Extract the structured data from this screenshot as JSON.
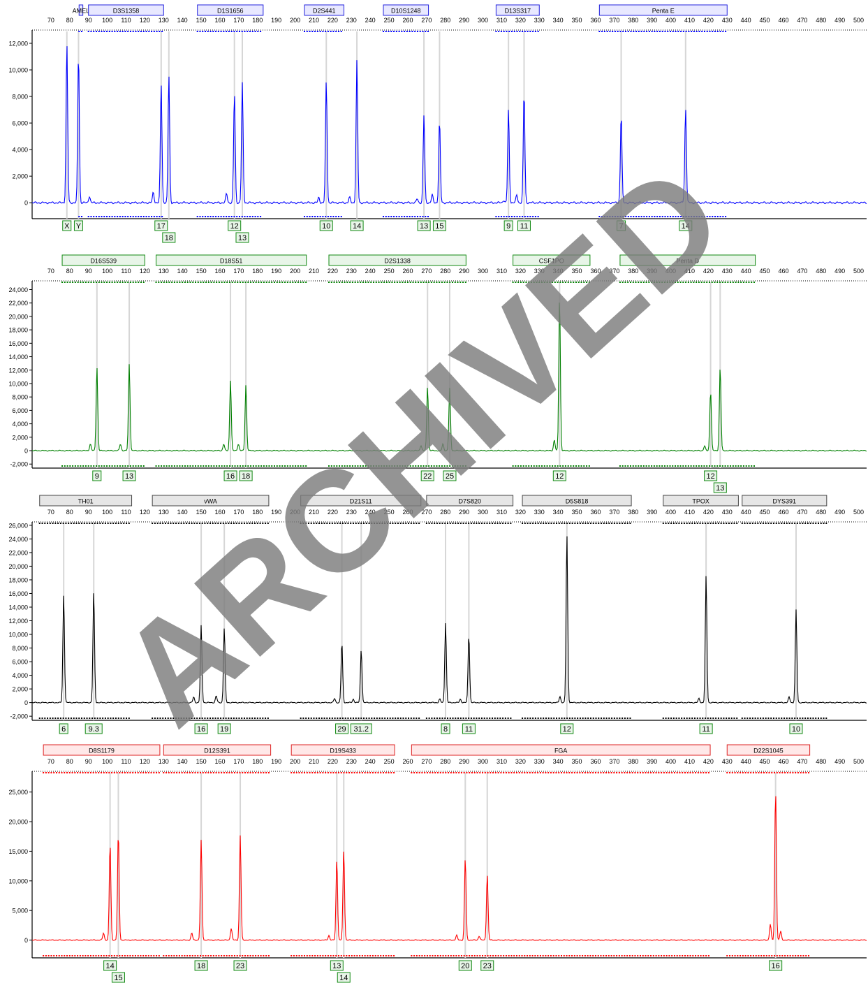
{
  "watermark": "ARCHIVED",
  "x_ticks": [
    70,
    80,
    90,
    100,
    110,
    120,
    130,
    140,
    150,
    160,
    170,
    180,
    190,
    200,
    210,
    220,
    230,
    240,
    250,
    260,
    270,
    280,
    290,
    300,
    310,
    320,
    330,
    340,
    350,
    360,
    370,
    380,
    390,
    400,
    410,
    420,
    430,
    440,
    450,
    460,
    470,
    480,
    490,
    500
  ],
  "chart_data": [
    {
      "type": "line",
      "color": "#0000ff",
      "xlim": [
        60,
        505
      ],
      "ylim": [
        -1200,
        13000
      ],
      "y_ticks": [
        0,
        2000,
        4000,
        6000,
        8000,
        10000,
        12000
      ],
      "y_tick_labels": [
        "0",
        "2,000",
        "4,000",
        "6,000",
        "8,000",
        "10,000",
        "12,000"
      ],
      "loci": [
        {
          "name": "AMEL",
          "start": 85,
          "end": 87
        },
        {
          "name": "D3S1358",
          "start": 90,
          "end": 130
        },
        {
          "name": "D1S1656",
          "start": 148,
          "end": 183
        },
        {
          "name": "D2S441",
          "start": 205,
          "end": 226
        },
        {
          "name": "D10S1248",
          "start": 247,
          "end": 271
        },
        {
          "name": "D13S317",
          "start": 307,
          "end": 330
        },
        {
          "name": "Penta E",
          "start": 362,
          "end": 430
        }
      ],
      "peaks": [
        {
          "x": 78.5,
          "h": 12000
        },
        {
          "x": 84.7,
          "h": 11300
        },
        {
          "x": 90.5,
          "h": 500
        },
        {
          "x": 124.5,
          "h": 800
        },
        {
          "x": 128.7,
          "h": 9000
        },
        {
          "x": 132.8,
          "h": 9600
        },
        {
          "x": 163.5,
          "h": 700
        },
        {
          "x": 167.7,
          "h": 8300
        },
        {
          "x": 171.9,
          "h": 9000
        },
        {
          "x": 212.6,
          "h": 400
        },
        {
          "x": 216.6,
          "h": 9200
        },
        {
          "x": 229,
          "h": 400
        },
        {
          "x": 232.9,
          "h": 10700
        },
        {
          "x": 265,
          "h": 300
        },
        {
          "x": 268.6,
          "h": 6600
        },
        {
          "x": 273,
          "h": 600
        },
        {
          "x": 276.9,
          "h": 6200
        },
        {
          "x": 311,
          "h": 200
        },
        {
          "x": 313.6,
          "h": 7000
        },
        {
          "x": 318,
          "h": 600
        },
        {
          "x": 321.9,
          "h": 8400
        },
        {
          "x": 373.6,
          "h": 6700
        },
        {
          "x": 407,
          "h": 200
        },
        {
          "x": 407.9,
          "h": 7100
        }
      ],
      "alleles": [
        {
          "x": 78.5,
          "labels": [
            "X"
          ]
        },
        {
          "x": 84.7,
          "labels": [
            "Y"
          ]
        },
        {
          "x": 128.7,
          "labels": [
            "17"
          ]
        },
        {
          "x": 132.8,
          "labels": [
            "",
            "18"
          ]
        },
        {
          "x": 167.7,
          "labels": [
            "12"
          ]
        },
        {
          "x": 171.9,
          "labels": [
            "",
            "13"
          ]
        },
        {
          "x": 216.6,
          "labels": [
            "10"
          ]
        },
        {
          "x": 232.9,
          "labels": [
            "14"
          ]
        },
        {
          "x": 268.6,
          "labels": [
            "13"
          ]
        },
        {
          "x": 276.9,
          "labels": [
            "15"
          ]
        },
        {
          "x": 313.6,
          "labels": [
            "9"
          ]
        },
        {
          "x": 321.9,
          "labels": [
            "11"
          ]
        },
        {
          "x": 373.6,
          "labels": [
            "7"
          ]
        },
        {
          "x": 407.9,
          "labels": [
            "14"
          ]
        }
      ]
    },
    {
      "type": "line",
      "color": "#008000",
      "xlim": [
        60,
        505
      ],
      "ylim": [
        -2600,
        25300
      ],
      "y_ticks": [
        -2000,
        0,
        2000,
        4000,
        6000,
        8000,
        10000,
        12000,
        14000,
        16000,
        18000,
        20000,
        22000,
        24000
      ],
      "y_tick_labels": [
        "-2,000",
        "0",
        "2,000",
        "4,000",
        "6,000",
        "8,000",
        "10,000",
        "12,000",
        "14,000",
        "16,000",
        "18,000",
        "20,000",
        "22,000",
        "24,000"
      ],
      "loci": [
        {
          "name": "D16S539",
          "start": 76,
          "end": 120
        },
        {
          "name": "D18S51",
          "start": 126,
          "end": 206
        },
        {
          "name": "D2S1338",
          "start": 218,
          "end": 291
        },
        {
          "name": "CSF1PO",
          "start": 316,
          "end": 357
        },
        {
          "name": "Penta D",
          "start": 373,
          "end": 445
        }
      ],
      "peaks": [
        {
          "x": 91,
          "h": 1000
        },
        {
          "x": 94.5,
          "h": 12500
        },
        {
          "x": 107,
          "h": 1000
        },
        {
          "x": 111.7,
          "h": 12900
        },
        {
          "x": 162,
          "h": 1000
        },
        {
          "x": 165.6,
          "h": 10500
        },
        {
          "x": 169.8,
          "h": 1000
        },
        {
          "x": 173.8,
          "h": 9800
        },
        {
          "x": 267,
          "h": 800
        },
        {
          "x": 270.5,
          "h": 9600
        },
        {
          "x": 278.7,
          "h": 1000
        },
        {
          "x": 282.3,
          "h": 9300
        },
        {
          "x": 338,
          "h": 1600
        },
        {
          "x": 340.8,
          "h": 23000
        },
        {
          "x": 418,
          "h": 700
        },
        {
          "x": 421.2,
          "h": 9000
        },
        {
          "x": 426.3,
          "h": 12500
        }
      ],
      "alleles": [
        {
          "x": 94.5,
          "labels": [
            "9"
          ]
        },
        {
          "x": 111.7,
          "labels": [
            "13"
          ]
        },
        {
          "x": 165.6,
          "labels": [
            "16"
          ]
        },
        {
          "x": 173.8,
          "labels": [
            "18"
          ]
        },
        {
          "x": 270.5,
          "labels": [
            "22"
          ]
        },
        {
          "x": 282.3,
          "labels": [
            "25"
          ]
        },
        {
          "x": 340.8,
          "labels": [
            "12"
          ]
        },
        {
          "x": 421.2,
          "labels": [
            "12"
          ]
        },
        {
          "x": 426.3,
          "labels": [
            "",
            "13"
          ]
        }
      ]
    },
    {
      "type": "line",
      "color": "#000000",
      "xlim": [
        60,
        505
      ],
      "ylim": [
        -2600,
        26500
      ],
      "y_ticks": [
        -2000,
        0,
        2000,
        4000,
        6000,
        8000,
        10000,
        12000,
        14000,
        16000,
        18000,
        20000,
        22000,
        24000,
        26000
      ],
      "y_tick_labels": [
        "-2,000",
        "0",
        "2,000",
        "4,000",
        "6,000",
        "8,000",
        "10,000",
        "12,000",
        "14,000",
        "16,000",
        "18,000",
        "20,000",
        "22,000",
        "24,000",
        "26,000"
      ],
      "loci": [
        {
          "name": "TH01",
          "start": 64,
          "end": 113
        },
        {
          "name": "vWA",
          "start": 124,
          "end": 186
        },
        {
          "name": "D21S11",
          "start": 203,
          "end": 267
        },
        {
          "name": "D7S820",
          "start": 270,
          "end": 316
        },
        {
          "name": "D5S818",
          "start": 321,
          "end": 379
        },
        {
          "name": "TPOX",
          "start": 396,
          "end": 436
        },
        {
          "name": "DYS391",
          "start": 438,
          "end": 483
        }
      ],
      "peaks": [
        {
          "x": 76.8,
          "h": 15900
        },
        {
          "x": 92.8,
          "h": 16300
        },
        {
          "x": 146,
          "h": 800
        },
        {
          "x": 150,
          "h": 11300
        },
        {
          "x": 158,
          "h": 1000
        },
        {
          "x": 162.3,
          "h": 11000
        },
        {
          "x": 221,
          "h": 600
        },
        {
          "x": 224.9,
          "h": 8900
        },
        {
          "x": 231,
          "h": 500
        },
        {
          "x": 235.2,
          "h": 7800
        },
        {
          "x": 277,
          "h": 500
        },
        {
          "x": 280.1,
          "h": 11700
        },
        {
          "x": 288,
          "h": 500
        },
        {
          "x": 292.5,
          "h": 10000
        },
        {
          "x": 341,
          "h": 900
        },
        {
          "x": 344.7,
          "h": 24700
        },
        {
          "x": 415,
          "h": 600
        },
        {
          "x": 418.8,
          "h": 18600
        },
        {
          "x": 463,
          "h": 800
        },
        {
          "x": 466.7,
          "h": 13600
        }
      ],
      "alleles": [
        {
          "x": 76.8,
          "labels": [
            "6"
          ]
        },
        {
          "x": 92.8,
          "labels": [
            "9.3"
          ]
        },
        {
          "x": 150,
          "labels": [
            "16"
          ]
        },
        {
          "x": 162.3,
          "labels": [
            "19"
          ]
        },
        {
          "x": 224.9,
          "labels": [
            "29"
          ]
        },
        {
          "x": 235.2,
          "labels": [
            "31.2"
          ]
        },
        {
          "x": 280.1,
          "labels": [
            "8"
          ]
        },
        {
          "x": 292.5,
          "labels": [
            "11"
          ]
        },
        {
          "x": 344.7,
          "labels": [
            "12"
          ]
        },
        {
          "x": 418.8,
          "labels": [
            "11"
          ]
        },
        {
          "x": 466.7,
          "labels": [
            "10"
          ]
        }
      ]
    },
    {
      "type": "line",
      "color": "#ff0000",
      "xlim": [
        60,
        505
      ],
      "ylim": [
        -3000,
        28500
      ],
      "y_ticks": [
        0,
        5000,
        10000,
        15000,
        20000,
        25000
      ],
      "y_tick_labels": [
        "0",
        "5,000",
        "10,000",
        "15,000",
        "20,000",
        "25,000"
      ],
      "loci": [
        {
          "name": "D8S1179",
          "start": 66,
          "end": 128
        },
        {
          "name": "D12S391",
          "start": 130,
          "end": 187
        },
        {
          "name": "D19S433",
          "start": 198,
          "end": 253
        },
        {
          "name": "FGA",
          "start": 262,
          "end": 421
        },
        {
          "name": "D22S1045",
          "start": 430,
          "end": 474
        }
      ],
      "peaks": [
        {
          "x": 98,
          "h": 1200
        },
        {
          "x": 101.5,
          "h": 16400
        },
        {
          "x": 105.9,
          "h": 18300
        },
        {
          "x": 145,
          "h": 1200
        },
        {
          "x": 150,
          "h": 16900
        },
        {
          "x": 166,
          "h": 2000
        },
        {
          "x": 170.8,
          "h": 17700
        },
        {
          "x": 218,
          "h": 800
        },
        {
          "x": 222.2,
          "h": 13700
        },
        {
          "x": 225.9,
          "h": 15300
        },
        {
          "x": 286,
          "h": 800
        },
        {
          "x": 290.6,
          "h": 13900
        },
        {
          "x": 298,
          "h": 700
        },
        {
          "x": 302.3,
          "h": 11100
        },
        {
          "x": 453,
          "h": 2700
        },
        {
          "x": 455.8,
          "h": 25500
        },
        {
          "x": 458.5,
          "h": 1500
        }
      ],
      "alleles": [
        {
          "x": 101.5,
          "labels": [
            "14"
          ]
        },
        {
          "x": 105.9,
          "labels": [
            "",
            "15"
          ]
        },
        {
          "x": 150,
          "labels": [
            "18"
          ]
        },
        {
          "x": 170.8,
          "labels": [
            "23"
          ]
        },
        {
          "x": 222.2,
          "labels": [
            "13"
          ]
        },
        {
          "x": 225.9,
          "labels": [
            "",
            "14"
          ]
        },
        {
          "x": 290.6,
          "labels": [
            "20"
          ]
        },
        {
          "x": 302.3,
          "labels": [
            "23"
          ]
        },
        {
          "x": 455.8,
          "labels": [
            "16"
          ]
        }
      ]
    }
  ]
}
